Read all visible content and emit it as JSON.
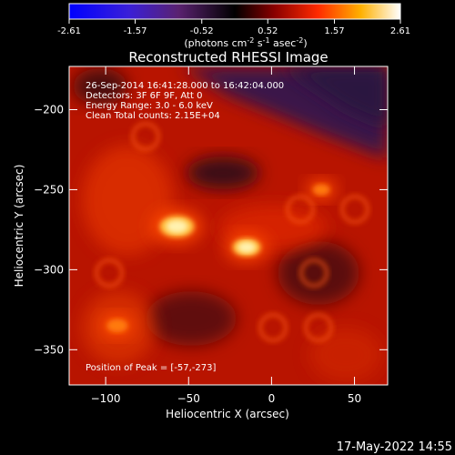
{
  "chart_data": {
    "type": "heatmap",
    "title": "Reconstructed RHESSI Image",
    "colorbar": {
      "ticks": [
        "-2.61",
        "-1.57",
        "-0.52",
        "0.52",
        "1.57",
        "2.61"
      ],
      "range": [
        -2.61,
        2.61
      ],
      "unit_label": "(photons cm",
      "unit_exp1": "-2",
      "unit_mid": " s",
      "unit_exp2": "-1",
      "unit_mid2": " asec",
      "unit_exp3": "-2",
      "unit_close": ")"
    },
    "xlabel": "Heliocentric X (arcsec)",
    "ylabel": "Heliocentric Y (arcsec)",
    "xlim": [
      -122,
      70
    ],
    "ylim": [
      -372,
      -173
    ],
    "xticks": [
      -100,
      -50,
      0,
      50
    ],
    "yticks": [
      -200,
      -250,
      -300,
      -350
    ],
    "annotations": [
      "26-Sep-2014 16:41:28.000 to 16:42:04.000",
      "Detectors: 3F 6F 9F, Att 0",
      "Energy Range: 3.0 - 6.0 keV",
      "Clean    Total counts: 2.15E+04"
    ],
    "peak_label": "Position of Peak = [-57,-273]",
    "peak": [
      -57,
      -273
    ],
    "sources": [
      {
        "x": -57,
        "y": -273,
        "intensity": 2.6
      },
      {
        "x": -15,
        "y": -286,
        "intensity": 1.9
      },
      {
        "x": -93,
        "y": -335,
        "intensity": 1.1
      },
      {
        "x": 30,
        "y": -250,
        "intensity": 0.7
      }
    ]
  },
  "footer_date": "17-May-2022 14:55"
}
